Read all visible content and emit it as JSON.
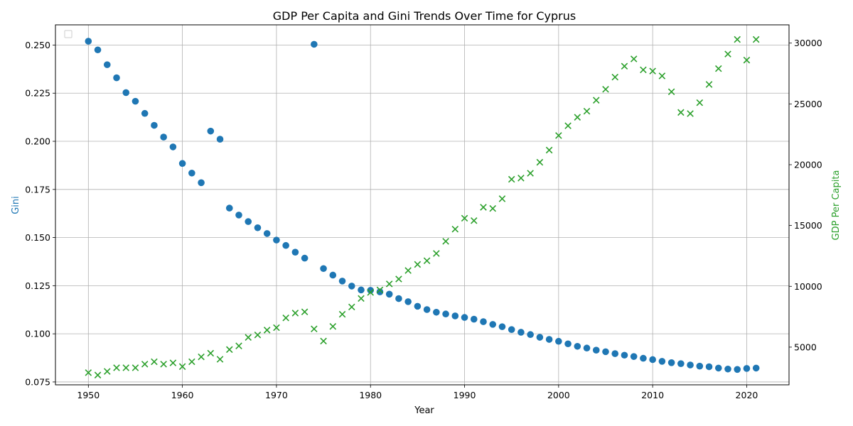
{
  "chart_data": {
    "type": "scatter",
    "title": "GDP Per Capita and Gini Trends Over Time for Cyprus",
    "xlabel": "Year",
    "ylabel_left": "Gini",
    "ylabel_right": "GDP Per Capita",
    "xlim": [
      1946.5,
      2024.5
    ],
    "ylim_left": [
      0.0735,
      0.2605
    ],
    "ylim_right": [
      1900,
      31500
    ],
    "x_ticks": [
      1950,
      1960,
      1970,
      1980,
      1990,
      2000,
      2010,
      2020
    ],
    "y_left_ticks": [
      0.075,
      0.1,
      0.125,
      0.15,
      0.175,
      0.2,
      0.225,
      0.25
    ],
    "y_left_tick_labels": [
      "0.075",
      "0.100",
      "0.125",
      "0.150",
      "0.175",
      "0.200",
      "0.225",
      "0.250"
    ],
    "y_right_ticks": [
      5000,
      10000,
      15000,
      20000,
      25000,
      30000
    ],
    "y_right_tick_labels": [
      "5000",
      "10000",
      "15000",
      "20000",
      "25000",
      "30000"
    ],
    "grid": true,
    "legend": "top-left",
    "colors": {
      "gini": "#1f77b4",
      "gdp": "#2ca02c"
    },
    "x": [
      1950,
      1951,
      1952,
      1953,
      1954,
      1955,
      1956,
      1957,
      1958,
      1959,
      1960,
      1961,
      1962,
      1963,
      1964,
      1965,
      1966,
      1967,
      1968,
      1969,
      1970,
      1971,
      1972,
      1973,
      1974,
      1975,
      1976,
      1977,
      1978,
      1979,
      1980,
      1981,
      1982,
      1983,
      1984,
      1985,
      1986,
      1987,
      1988,
      1989,
      1990,
      1991,
      1992,
      1993,
      1994,
      1995,
      1996,
      1997,
      1998,
      1999,
      2000,
      2001,
      2002,
      2003,
      2004,
      2005,
      2006,
      2007,
      2008,
      2009,
      2010,
      2011,
      2012,
      2013,
      2014,
      2015,
      2016,
      2017,
      2018,
      2019,
      2020,
      2021
    ],
    "series": [
      {
        "axis": "left",
        "marker": "circle",
        "values": [
          0.252,
          0.2475,
          0.2398,
          0.233,
          0.2253,
          0.2208,
          0.2145,
          0.2083,
          0.2022,
          0.1971,
          0.1885,
          0.1835,
          0.1785,
          0.2053,
          0.2011,
          0.1653,
          0.1617,
          0.1583,
          0.1551,
          0.1521,
          0.1487,
          0.1459,
          0.1424,
          0.1393,
          0.2504,
          0.1339,
          0.1305,
          0.1274,
          0.1248,
          0.1228,
          0.1226,
          0.1218,
          0.1206,
          0.1183,
          0.1167,
          0.1143,
          0.1126,
          0.1112,
          0.1103,
          0.1093,
          0.1085,
          0.1076,
          0.1063,
          0.1049,
          0.1037,
          0.1022,
          0.1008,
          0.0996,
          0.0982,
          0.0971,
          0.0961,
          0.0948,
          0.0935,
          0.0926,
          0.0915,
          0.0907,
          0.0897,
          0.0889,
          0.0882,
          0.0873,
          0.0866,
          0.0857,
          0.085,
          0.0845,
          0.0838,
          0.0832,
          0.0829,
          0.0822,
          0.0817,
          0.0815,
          0.082,
          0.0822
        ]
      },
      {
        "axis": "right",
        "marker": "x",
        "values": [
          2900,
          2700,
          3000,
          3300,
          3300,
          3300,
          3600,
          3800,
          3600,
          3700,
          3400,
          3800,
          4200,
          4500,
          4000,
          4800,
          5100,
          5800,
          6000,
          6400,
          6600,
          7400,
          7800,
          7900,
          6500,
          5500,
          6700,
          7700,
          8300,
          9000,
          9500,
          9700,
          10200,
          10600,
          11300,
          11800,
          12100,
          12700,
          13700,
          14700,
          15600,
          15400,
          16500,
          16400,
          17200,
          18800,
          18900,
          19300,
          20200,
          21200,
          22400,
          23200,
          23900,
          24400,
          25300,
          26200,
          27200,
          28100,
          28700,
          27800,
          27700,
          27300,
          26000,
          24300,
          24200,
          25100,
          26600,
          27900,
          29100,
          30300,
          28600,
          30300
        ]
      }
    ]
  }
}
